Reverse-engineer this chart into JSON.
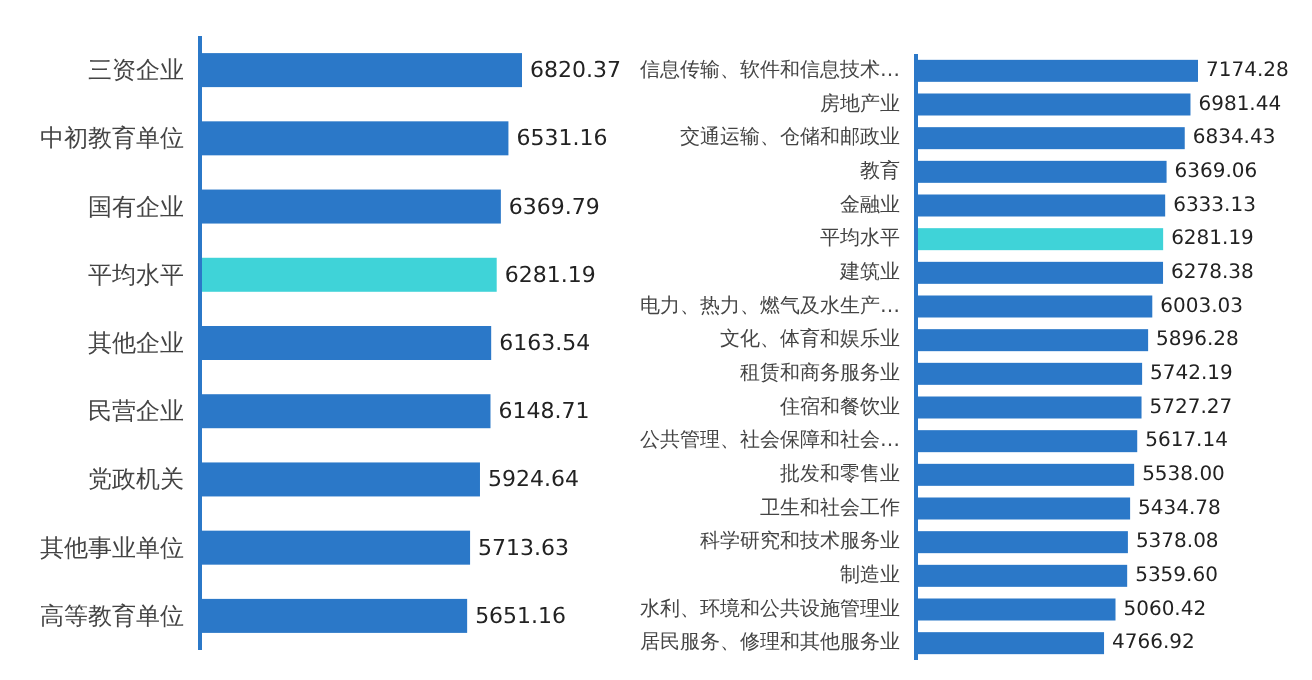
{
  "chart_data": [
    {
      "type": "bar",
      "orientation": "horizontal",
      "data_labels": true,
      "categories": [
        "三资企业",
        "中初教育单位",
        "国有企业",
        "平均水平",
        "其他企业",
        "民营企业",
        "党政机关",
        "其他事业单位",
        "高等教育单位"
      ],
      "values": [
        6820.37,
        6531.16,
        6369.79,
        6281.19,
        6163.54,
        6148.71,
        5924.64,
        5713.63,
        5651.16
      ],
      "colors": [
        "#2b78c8",
        "#2b78c8",
        "#2b78c8",
        "#3fd3d8",
        "#2b78c8",
        "#2b78c8",
        "#2b78c8",
        "#2b78c8",
        "#2b78c8"
      ]
    },
    {
      "type": "bar",
      "orientation": "horizontal",
      "categories": [
        "信息传输、软件和信息技术…",
        "房地产业",
        "交通运输、仓储和邮政业",
        "教育",
        "金融业",
        "平均水平",
        "建筑业",
        "电力、热力、燃气及水生产…",
        "文化、体育和娱乐业",
        "租赁和商务服务业",
        "住宿和餐饮业",
        "公共管理、社会保障和社会…",
        "批发和零售业",
        "卫生和社会工作",
        "科学研究和技术服务业",
        "制造业",
        "水利、环境和公共设施管理业",
        "居民服务、修理和其他服务业"
      ],
      "values": [
        7174.28,
        6981.44,
        6834.43,
        6369.06,
        6333.13,
        6281.19,
        6278.38,
        6003.03,
        5896.28,
        5742.19,
        5727.27,
        5617.14,
        5538.0,
        5434.78,
        5378.08,
        5359.6,
        5060.42,
        4766.92
      ],
      "value_labels": [
        "7174.28",
        "6981.44",
        "6834.43",
        "6369.06",
        "6333.13",
        "6281.19",
        "6278.38",
        "6003.03",
        "5896.28",
        "5742.19",
        "5727.27",
        "5617.14",
        "5538.00",
        "5434.78",
        "5378.08",
        "5359.60",
        "5060.42",
        "4766.92"
      ],
      "colors": [
        "#2b78c8",
        "#2b78c8",
        "#2b78c8",
        "#2b78c8",
        "#2b78c8",
        "#3fd3d8",
        "#2b78c8",
        "#2b78c8",
        "#2b78c8",
        "#2b78c8",
        "#2b78c8",
        "#2b78c8",
        "#2b78c8",
        "#2b78c8",
        "#2b78c8",
        "#2b78c8",
        "#2b78c8",
        "#2b78c8"
      ]
    }
  ]
}
